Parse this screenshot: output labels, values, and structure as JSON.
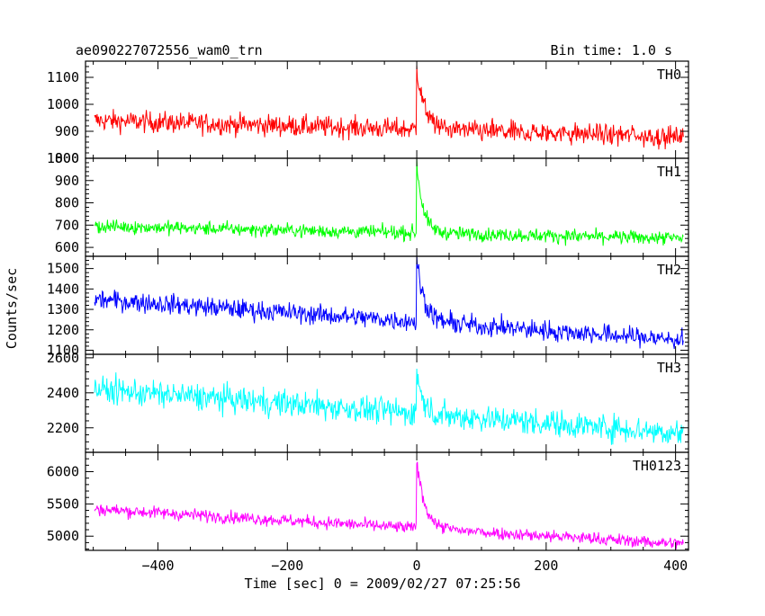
{
  "chart_data": {
    "type": "line",
    "title_left": "ae090227072556_wam0_trn",
    "title_right": "Bin time: 1.0 s",
    "xlabel": "Time [sec] 0 = 2009/02/27 07:25:56",
    "ylabel": "Counts/sec",
    "xlim": [
      -512,
      420
    ],
    "x_ticks": [
      -400,
      -200,
      0,
      200,
      400
    ],
    "x_ticklabels": [
      "−400",
      "−200",
      "0",
      "200",
      "400"
    ],
    "burst_time": 0,
    "panels": [
      {
        "name": "TH0",
        "color": "#ff0000",
        "ylim": [
          800,
          1160
        ],
        "y_ticks": [
          800,
          900,
          1000,
          1100
        ],
        "y_ticklabels": [
          "800",
          "900",
          "1000",
          "1100"
        ],
        "baseline_start": 940,
        "baseline_end": 880,
        "noise": 28,
        "peak": 1160,
        "decay": 12
      },
      {
        "name": "TH1",
        "color": "#00ff00",
        "ylim": [
          560,
          1000
        ],
        "y_ticks": [
          600,
          700,
          800,
          900,
          1000
        ],
        "y_ticklabels": [
          "600",
          "700",
          "800",
          "900",
          "1000"
        ],
        "baseline_start": 695,
        "baseline_end": 640,
        "noise": 22,
        "peak": 1000,
        "decay": 10
      },
      {
        "name": "TH2",
        "color": "#0000ff",
        "ylim": [
          1080,
          1560
        ],
        "y_ticks": [
          1100,
          1200,
          1300,
          1400,
          1500
        ],
        "y_ticklabels": [
          "1100",
          "1200",
          "1300",
          "1400",
          "1500"
        ],
        "baseline_start": 1350,
        "baseline_end": 1150,
        "noise": 35,
        "peak": 1560,
        "decay": 12
      },
      {
        "name": "TH3",
        "color": "#00ffff",
        "ylim": [
          2060,
          2620
        ],
        "y_ticks": [
          2200,
          2400,
          2600
        ],
        "y_ticklabels": [
          "2200",
          "2400",
          "2600"
        ],
        "baseline_start": 2420,
        "baseline_end": 2170,
        "noise": 55,
        "peak": 2560,
        "decay": 8
      },
      {
        "name": "TH0123",
        "color": "#ff00ff",
        "ylim": [
          4780,
          6300
        ],
        "y_ticks": [
          5000,
          5500,
          6000
        ],
        "y_ticklabels": [
          "5000",
          "5500",
          "6000"
        ],
        "baseline_start": 5420,
        "baseline_end": 4880,
        "noise": 70,
        "peak": 6300,
        "decay": 12
      }
    ]
  }
}
